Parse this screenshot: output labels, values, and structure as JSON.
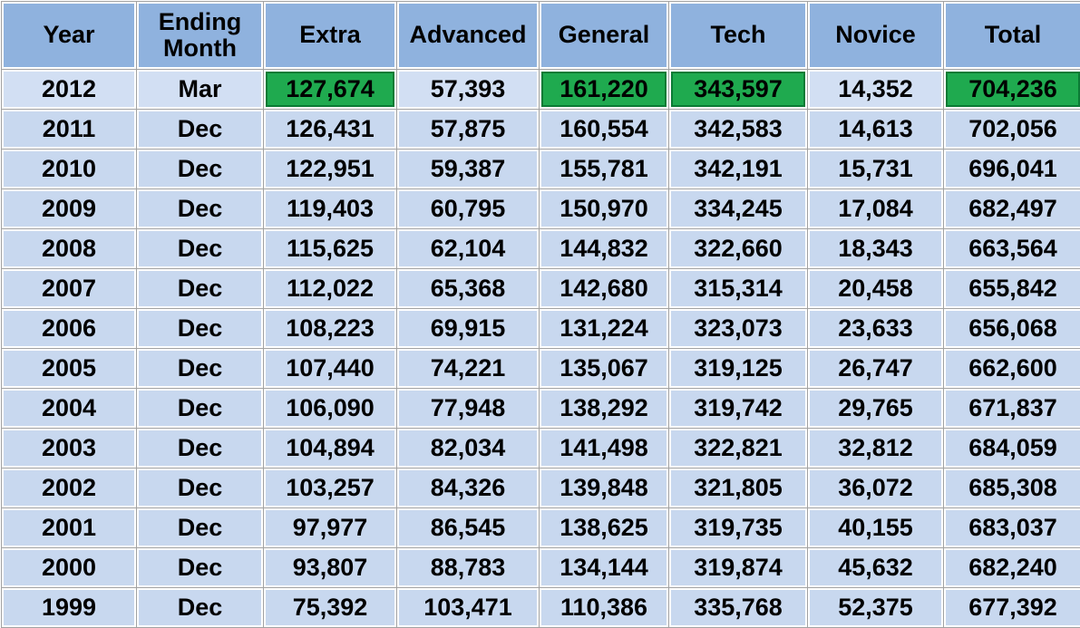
{
  "table": {
    "columns": [
      "Year",
      "Ending Month",
      "Extra",
      "Advanced",
      "General",
      "Tech",
      "Novice",
      "Total"
    ],
    "rows": [
      [
        "2012",
        "Mar",
        "127,674",
        "57,393",
        "161,220",
        "343,597",
        "14,352",
        "704,236"
      ],
      [
        "2011",
        "Dec",
        "126,431",
        "57,875",
        "160,554",
        "342,583",
        "14,613",
        "702,056"
      ],
      [
        "2010",
        "Dec",
        "122,951",
        "59,387",
        "155,781",
        "342,191",
        "15,731",
        "696,041"
      ],
      [
        "2009",
        "Dec",
        "119,403",
        "60,795",
        "150,970",
        "334,245",
        "17,084",
        "682,497"
      ],
      [
        "2008",
        "Dec",
        "115,625",
        "62,104",
        "144,832",
        "322,660",
        "18,343",
        "663,564"
      ],
      [
        "2007",
        "Dec",
        "112,022",
        "65,368",
        "142,680",
        "315,314",
        "20,458",
        "655,842"
      ],
      [
        "2006",
        "Dec",
        "108,223",
        "69,915",
        "131,224",
        "323,073",
        "23,633",
        "656,068"
      ],
      [
        "2005",
        "Dec",
        "107,440",
        "74,221",
        "135,067",
        "319,125",
        "26,747",
        "662,600"
      ],
      [
        "2004",
        "Dec",
        "106,090",
        "77,948",
        "138,292",
        "319,742",
        "29,765",
        "671,837"
      ],
      [
        "2003",
        "Dec",
        "104,894",
        "82,034",
        "141,498",
        "322,821",
        "32,812",
        "684,059"
      ],
      [
        "2002",
        "Dec",
        "103,257",
        "84,326",
        "139,848",
        "321,805",
        "36,072",
        "685,308"
      ],
      [
        "2001",
        "Dec",
        "97,977",
        "86,545",
        "138,625",
        "319,735",
        "40,155",
        "683,037"
      ],
      [
        "2000",
        "Dec",
        "93,807",
        "88,783",
        "134,144",
        "319,874",
        "45,632",
        "682,240"
      ],
      [
        "1999",
        "Dec",
        "75,392",
        "103,471",
        "110,386",
        "335,768",
        "52,375",
        "677,392"
      ]
    ],
    "highlighted_cells": [
      [
        0,
        2
      ],
      [
        0,
        4
      ],
      [
        0,
        5
      ],
      [
        0,
        7
      ]
    ]
  },
  "colors": {
    "header_bg": "#8fb2de",
    "row_bg": "#c8d8ef",
    "first_row_bg": "#d2dff3",
    "highlight_bg": "#1faa4f",
    "highlight_border": "#0b7b35",
    "gridline": "#a2a2a2",
    "text": "#000000"
  }
}
